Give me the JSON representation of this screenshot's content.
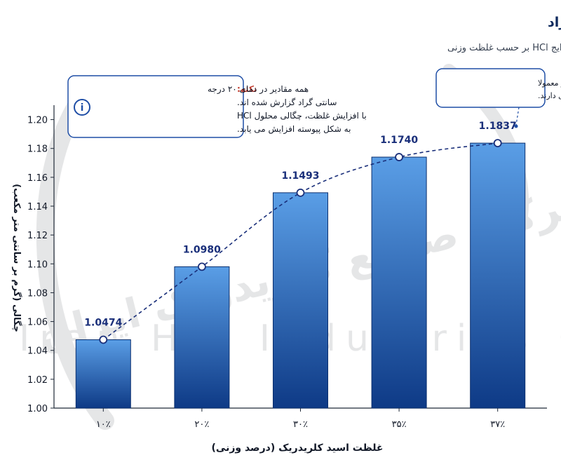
{
  "header": {
    "title": "اسید کلریدریک غلیظ تر، چگالی بیشتر: مقایسه گریدهای رایج در ۲۰ درجه سانتی گراد",
    "subtitle": "نمودار مقایسه ای چگالی محلول های رایج HCl بر حسب غلظت وزنی"
  },
  "watermark": {
    "line1": "شرکت صنایع کلریدریک ایران",
    "line2": "Iran Hcl Industries Co"
  },
  "note": {
    "heading": "نکته:",
    "line1": "همه مقادیر در دمای ۲۰ درجه",
    "line2": "سانتی گراد گزارش شده اند.",
    "line3": "با افزایش غلظت، چگالی محلول HCl",
    "line4": "به شکل پیوسته افزایش می یابد."
  },
  "callout": {
    "line1": "غلظت های بالاتر معمولا",
    "line2": "مه زایی محسوس تری دارند."
  },
  "chart_data": {
    "type": "bar",
    "title": "اسید کلریدریک غلیظ تر، چگالی بیشتر: مقایسه گریدهای رایج در ۲۰ درجه سانتی گراد",
    "subtitle": "نمودار مقایسه ای چگالی محلول های رایج HCl بر حسب غلظت وزنی",
    "xlabel": "غلظت اسید کلریدریک (درصد وزنی)",
    "ylabel": "چگالی (گرم بر سانتی متر مکعب)",
    "categories": [
      "۱۰٪",
      "۲۰٪",
      "۳۰٪",
      "۳۵٪",
      "۳۷٪"
    ],
    "values": [
      1.0474,
      1.098,
      1.1493,
      1.174,
      1.1837
    ],
    "value_labels": [
      "1.0474",
      "1.0980",
      "1.1493",
      "1.1740",
      "1.1837"
    ],
    "ylim": [
      1.0,
      1.21
    ],
    "yticks": [
      "1.00",
      "1.02",
      "1.04",
      "1.06",
      "1.08",
      "1.10",
      "1.12",
      "1.14",
      "1.16",
      "1.18",
      "1.20"
    ],
    "trend_line": true,
    "grid": false,
    "colors": {
      "bar_top": "#5a9ee6",
      "bar_bottom": "#0e3a86",
      "trend": "#1a2f7a",
      "label": "#1a2f7a",
      "box_border": "#1f4ea6"
    }
  }
}
